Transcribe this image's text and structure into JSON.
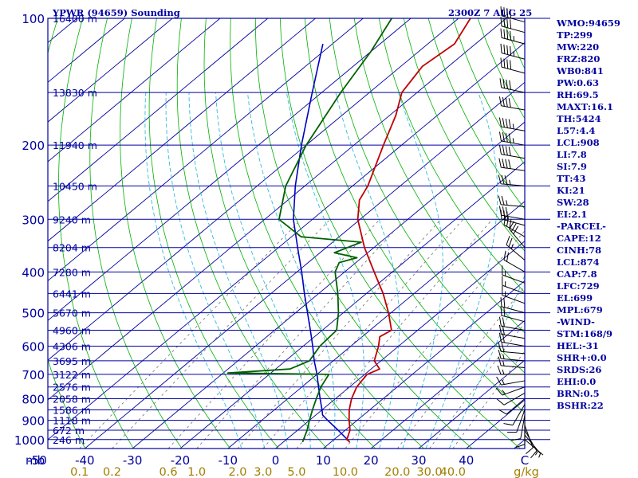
{
  "header": {
    "station_title": "YPWR (94659) Sounding",
    "valid_time": "2300Z  7 AUG 25"
  },
  "chart_data": {
    "type": "skew-t log-p",
    "pressure_ticks": [
      100,
      200,
      300,
      400,
      500,
      600,
      700,
      800,
      900,
      1000
    ],
    "pressure_ylim": [
      100,
      1050
    ],
    "temperature_ticks": [
      -50,
      -40,
      -30,
      -20,
      -10,
      0,
      10,
      20,
      30,
      40
    ],
    "temperature_xlim": [
      -50,
      50
    ],
    "x_axis_left_label": "mb",
    "x_axis_right_label": "C",
    "mixing_ratio_ticks": [
      "0.1",
      "0.2",
      "0.6",
      "1.0",
      "2.0",
      "3.0",
      "5.0",
      "10.0",
      "20.0",
      "30.0",
      "40.0"
    ],
    "mixing_ratio_unit": "g/kg",
    "height_levels": [
      {
        "p": 100,
        "label": "16400 m"
      },
      {
        "p": 150,
        "label": "13830 m"
      },
      {
        "p": 200,
        "label": "11940 m"
      },
      {
        "p": 250,
        "label": "10450 m"
      },
      {
        "p": 300,
        "label": "9240 m"
      },
      {
        "p": 350,
        "label": "8204 m"
      },
      {
        "p": 400,
        "label": "7280 m"
      },
      {
        "p": 450,
        "label": "6441 m"
      },
      {
        "p": 500,
        "label": "5670 m"
      },
      {
        "p": 550,
        "label": "4960 m"
      },
      {
        "p": 600,
        "label": "4306 m"
      },
      {
        "p": 650,
        "label": "3695 m"
      },
      {
        "p": 700,
        "label": "3122 m"
      },
      {
        "p": 750,
        "label": "2576 m"
      },
      {
        "p": 800,
        "label": "2058 m"
      },
      {
        "p": 850,
        "label": "1586 m"
      },
      {
        "p": 900,
        "label": "1118 m"
      },
      {
        "p": 950,
        "label": "672 m"
      },
      {
        "p": 1000,
        "label": "246 m"
      }
    ],
    "temperature_profile": [
      {
        "p": 1013,
        "t": 13.9
      },
      {
        "p": 1000,
        "t": 12.7
      },
      {
        "p": 950,
        "t": 11.0
      },
      {
        "p": 900,
        "t": 8.3
      },
      {
        "p": 850,
        "t": 5.7
      },
      {
        "p": 800,
        "t": 3.4
      },
      {
        "p": 750,
        "t": 1.5
      },
      {
        "p": 700,
        "t": 0.5
      },
      {
        "p": 680,
        "t": 1.8
      },
      {
        "p": 650,
        "t": -1.4
      },
      {
        "p": 600,
        "t": -4.2
      },
      {
        "p": 570,
        "t": -6.3
      },
      {
        "p": 550,
        "t": -5.5
      },
      {
        "p": 500,
        "t": -10.5
      },
      {
        "p": 450,
        "t": -16.5
      },
      {
        "p": 400,
        "t": -23.8
      },
      {
        "p": 350,
        "t": -32.0
      },
      {
        "p": 300,
        "t": -40.5
      },
      {
        "p": 270,
        "t": -45.0
      },
      {
        "p": 250,
        "t": -46.8
      },
      {
        "p": 200,
        "t": -53.8
      },
      {
        "p": 170,
        "t": -58.7
      },
      {
        "p": 150,
        "t": -63.2
      },
      {
        "p": 130,
        "t": -65.5
      },
      {
        "p": 115,
        "t": -64.4
      },
      {
        "p": 100,
        "t": -67.5
      }
    ],
    "dewpoint_profile": [
      {
        "p": 1013,
        "t": 4.0
      },
      {
        "p": 950,
        "t": 2.0
      },
      {
        "p": 900,
        "t": 0.0
      },
      {
        "p": 850,
        "t": -2.0
      },
      {
        "p": 800,
        "t": -4.0
      },
      {
        "p": 750,
        "t": -6.0
      },
      {
        "p": 700,
        "t": -7.5
      },
      {
        "p": 695,
        "t": -29.0
      },
      {
        "p": 680,
        "t": -17.0
      },
      {
        "p": 650,
        "t": -15.0
      },
      {
        "p": 600,
        "t": -16.5
      },
      {
        "p": 550,
        "t": -17.0
      },
      {
        "p": 500,
        "t": -21.0
      },
      {
        "p": 450,
        "t": -26.0
      },
      {
        "p": 400,
        "t": -32.0
      },
      {
        "p": 380,
        "t": -33.5
      },
      {
        "p": 370,
        "t": -31.0
      },
      {
        "p": 360,
        "t": -37.0
      },
      {
        "p": 340,
        "t": -34.0
      },
      {
        "p": 330,
        "t": -48.0
      },
      {
        "p": 300,
        "t": -57.0
      },
      {
        "p": 250,
        "t": -64.0
      },
      {
        "p": 200,
        "t": -70.0
      },
      {
        "p": 150,
        "t": -76.0
      },
      {
        "p": 120,
        "t": -80.0
      },
      {
        "p": 100,
        "t": -84.0
      }
    ],
    "parcel_profile": [
      {
        "p": 1013,
        "t": 13.9
      },
      {
        "p": 950,
        "t": 8.5
      },
      {
        "p": 900,
        "t": 3.8
      },
      {
        "p": 874,
        "t": 1.4
      },
      {
        "p": 850,
        "t": 0.0
      },
      {
        "p": 800,
        "t": -3.2
      },
      {
        "p": 750,
        "t": -6.5
      },
      {
        "p": 700,
        "t": -10.0
      },
      {
        "p": 650,
        "t": -14.0
      },
      {
        "p": 600,
        "t": -18.0
      },
      {
        "p": 550,
        "t": -22.5
      },
      {
        "p": 500,
        "t": -27.5
      },
      {
        "p": 450,
        "t": -33.0
      },
      {
        "p": 400,
        "t": -39.0
      },
      {
        "p": 350,
        "t": -46.0
      },
      {
        "p": 300,
        "t": -54.0
      },
      {
        "p": 250,
        "t": -62.0
      },
      {
        "p": 200,
        "t": -71.0
      },
      {
        "p": 150,
        "t": -82.0
      },
      {
        "p": 115,
        "t": -92.0
      }
    ],
    "wind_barbs": [
      {
        "p": 1000,
        "dir": 130,
        "spd": 5
      },
      {
        "p": 975,
        "dir": 140,
        "spd": 5
      },
      {
        "p": 950,
        "dir": 150,
        "spd": 10
      },
      {
        "p": 925,
        "dir": 160,
        "spd": 10
      },
      {
        "p": 900,
        "dir": 180,
        "spd": 10
      },
      {
        "p": 875,
        "dir": 190,
        "spd": 10
      },
      {
        "p": 850,
        "dir": 200,
        "spd": 10
      },
      {
        "p": 825,
        "dir": 210,
        "spd": 10
      },
      {
        "p": 800,
        "dir": 230,
        "spd": 10
      },
      {
        "p": 775,
        "dir": 240,
        "spd": 10
      },
      {
        "p": 750,
        "dir": 250,
        "spd": 15
      },
      {
        "p": 725,
        "dir": 260,
        "spd": 15
      },
      {
        "p": 700,
        "dir": 270,
        "spd": 15
      },
      {
        "p": 675,
        "dir": 275,
        "spd": 15
      },
      {
        "p": 650,
        "dir": 275,
        "spd": 15
      },
      {
        "p": 625,
        "dir": 275,
        "spd": 20
      },
      {
        "p": 600,
        "dir": 280,
        "spd": 20
      },
      {
        "p": 575,
        "dir": 280,
        "spd": 20
      },
      {
        "p": 550,
        "dir": 280,
        "spd": 20
      },
      {
        "p": 525,
        "dir": 285,
        "spd": 20
      },
      {
        "p": 500,
        "dir": 285,
        "spd": 20
      },
      {
        "p": 475,
        "dir": 290,
        "spd": 15
      },
      {
        "p": 450,
        "dir": 290,
        "spd": 15
      },
      {
        "p": 425,
        "dir": 290,
        "spd": 15
      },
      {
        "p": 400,
        "dir": 300,
        "spd": 20
      },
      {
        "p": 375,
        "dir": 310,
        "spd": 25
      },
      {
        "p": 350,
        "dir": 320,
        "spd": 30
      },
      {
        "p": 330,
        "dir": 300,
        "spd": 30
      },
      {
        "p": 310,
        "dir": 285,
        "spd": 30
      },
      {
        "p": 300,
        "dir": 280,
        "spd": 30
      },
      {
        "p": 280,
        "dir": 275,
        "spd": 25
      },
      {
        "p": 250,
        "dir": 275,
        "spd": 35
      },
      {
        "p": 230,
        "dir": 278,
        "spd": 40
      },
      {
        "p": 215,
        "dir": 280,
        "spd": 40
      },
      {
        "p": 200,
        "dir": 280,
        "spd": 45
      },
      {
        "p": 185,
        "dir": 280,
        "spd": 45
      },
      {
        "p": 165,
        "dir": 280,
        "spd": 40
      },
      {
        "p": 150,
        "dir": 282,
        "spd": 40
      },
      {
        "p": 135,
        "dir": 285,
        "spd": 40
      },
      {
        "p": 125,
        "dir": 285,
        "spd": 45
      },
      {
        "p": 115,
        "dir": 285,
        "spd": 45
      },
      {
        "p": 108,
        "dir": 285,
        "spd": 40
      },
      {
        "p": 102,
        "dir": 285,
        "spd": 40
      }
    ],
    "colors": {
      "frame": "#0000a0",
      "isobar": "#0000a0",
      "isotherm": "#0000a0",
      "dry_adiabat": "#00b000",
      "moist_adiabat": "#33bbdd",
      "mixing_ratio": "#707070",
      "temperature": "#c00000",
      "dewpoint": "#006000",
      "parcel": "#0000c0",
      "wind": "#000000",
      "mixing_ratio_label": "#a08000"
    }
  },
  "indices": [
    "WMO:94659",
    "TP:299",
    "MW:220",
    "FRZ:820",
    "WB0:841",
    "PW:0.63",
    "RH:69.5",
    "MAXT:16.1",
    "TH:5424",
    "L57:4.4",
    "LCL:908",
    "LI:7.8",
    "SI:7.9",
    "TT:43",
    "KI:21",
    "SW:28",
    "EI:2.1",
    "-PARCEL-",
    "CAPE:12",
    "CINH:78",
    "LCL:874",
    "CAP:7.8",
    "LFC:729",
    "EL:699",
    "MPL:679",
    "-WIND-",
    "STM:168/9",
    "HEL:-31",
    "SHR+:0.0",
    "SRDS:26",
    "EHI:0.0",
    "BRN:0.5",
    "BSHR:22"
  ]
}
